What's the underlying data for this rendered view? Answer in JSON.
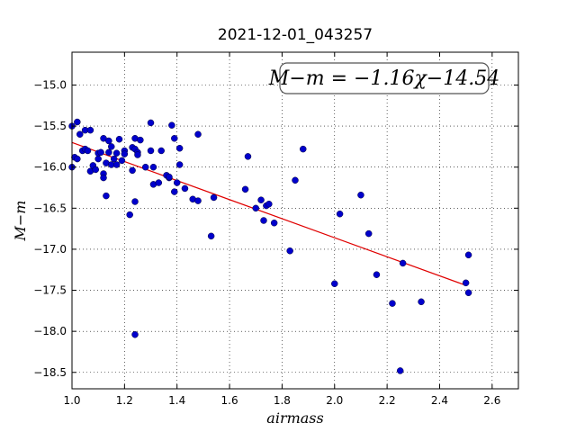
{
  "chart_data": {
    "type": "scatter",
    "title": "2021-12-01_043257",
    "xlabel": "airmass",
    "ylabel": "M−m",
    "xlim": [
      1.0,
      2.7
    ],
    "ylim": [
      -18.7,
      -14.6
    ],
    "y_inverted": true,
    "grid": true,
    "x_ticks": [
      1.0,
      1.2,
      1.4,
      1.6,
      1.8,
      2.0,
      2.2,
      2.4,
      2.6
    ],
    "x_tick_labels": [
      "1.0",
      "1.2",
      "1.4",
      "1.6",
      "1.8",
      "2.0",
      "2.2",
      "2.4",
      "2.6"
    ],
    "y_ticks": [
      -15.0,
      -15.5,
      -16.0,
      -16.5,
      -17.0,
      -17.5,
      -18.0,
      -18.5
    ],
    "y_tick_labels": [
      "−15.0",
      "−15.5",
      "−16.0",
      "−16.5",
      "−17.0",
      "−17.5",
      "−18.0",
      "−18.5"
    ],
    "annotation": "M−m = −1.16χ−14.54",
    "fit": {
      "slope": -1.16,
      "intercept": -14.54,
      "x_range": [
        1.0,
        2.5
      ],
      "color": "#e00000"
    },
    "points_color": "#0000cc",
    "points": [
      {
        "x": 1.0,
        "y": -15.5
      },
      {
        "x": 1.0,
        "y": -16.0
      },
      {
        "x": 1.01,
        "y": -15.88
      },
      {
        "x": 1.02,
        "y": -15.45
      },
      {
        "x": 1.02,
        "y": -15.9
      },
      {
        "x": 1.03,
        "y": -15.6
      },
      {
        "x": 1.04,
        "y": -15.8
      },
      {
        "x": 1.05,
        "y": -15.55
      },
      {
        "x": 1.05,
        "y": -15.78
      },
      {
        "x": 1.06,
        "y": -15.8
      },
      {
        "x": 1.07,
        "y": -15.55
      },
      {
        "x": 1.07,
        "y": -16.05
      },
      {
        "x": 1.08,
        "y": -15.98
      },
      {
        "x": 1.09,
        "y": -16.03
      },
      {
        "x": 1.1,
        "y": -15.83
      },
      {
        "x": 1.1,
        "y": -15.9
      },
      {
        "x": 1.11,
        "y": -15.82
      },
      {
        "x": 1.12,
        "y": -15.65
      },
      {
        "x": 1.12,
        "y": -16.08
      },
      {
        "x": 1.12,
        "y": -16.13
      },
      {
        "x": 1.13,
        "y": -15.95
      },
      {
        "x": 1.13,
        "y": -16.35
      },
      {
        "x": 1.14,
        "y": -15.82
      },
      {
        "x": 1.14,
        "y": -15.68
      },
      {
        "x": 1.15,
        "y": -15.75
      },
      {
        "x": 1.15,
        "y": -15.97
      },
      {
        "x": 1.16,
        "y": -15.9
      },
      {
        "x": 1.17,
        "y": -15.83
      },
      {
        "x": 1.17,
        "y": -15.97
      },
      {
        "x": 1.18,
        "y": -15.66
      },
      {
        "x": 1.19,
        "y": -15.92
      },
      {
        "x": 1.2,
        "y": -15.8
      },
      {
        "x": 1.2,
        "y": -15.84
      },
      {
        "x": 1.22,
        "y": -16.58
      },
      {
        "x": 1.23,
        "y": -15.76
      },
      {
        "x": 1.23,
        "y": -16.04
      },
      {
        "x": 1.24,
        "y": -16.42
      },
      {
        "x": 1.24,
        "y": -15.78
      },
      {
        "x": 1.24,
        "y": -15.65
      },
      {
        "x": 1.25,
        "y": -15.82
      },
      {
        "x": 1.25,
        "y": -15.85
      },
      {
        "x": 1.24,
        "y": -18.04
      },
      {
        "x": 1.26,
        "y": -15.67
      },
      {
        "x": 1.28,
        "y": -16.0
      },
      {
        "x": 1.3,
        "y": -15.46
      },
      {
        "x": 1.3,
        "y": -15.8
      },
      {
        "x": 1.31,
        "y": -16.0
      },
      {
        "x": 1.31,
        "y": -16.21
      },
      {
        "x": 1.33,
        "y": -16.19
      },
      {
        "x": 1.34,
        "y": -15.8
      },
      {
        "x": 1.36,
        "y": -16.1
      },
      {
        "x": 1.37,
        "y": -16.13
      },
      {
        "x": 1.37,
        "y": -16.12
      },
      {
        "x": 1.38,
        "y": -15.49
      },
      {
        "x": 1.39,
        "y": -15.65
      },
      {
        "x": 1.39,
        "y": -16.3
      },
      {
        "x": 1.4,
        "y": -16.19
      },
      {
        "x": 1.41,
        "y": -15.77
      },
      {
        "x": 1.41,
        "y": -15.97
      },
      {
        "x": 1.43,
        "y": -16.26
      },
      {
        "x": 1.46,
        "y": -16.39
      },
      {
        "x": 1.48,
        "y": -15.6
      },
      {
        "x": 1.48,
        "y": -16.41
      },
      {
        "x": 1.53,
        "y": -16.84
      },
      {
        "x": 1.54,
        "y": -16.37
      },
      {
        "x": 1.66,
        "y": -16.27
      },
      {
        "x": 1.67,
        "y": -15.87
      },
      {
        "x": 1.7,
        "y": -16.5
      },
      {
        "x": 1.72,
        "y": -16.4
      },
      {
        "x": 1.73,
        "y": -16.65
      },
      {
        "x": 1.74,
        "y": -16.47
      },
      {
        "x": 1.75,
        "y": -16.45
      },
      {
        "x": 1.77,
        "y": -16.68
      },
      {
        "x": 1.83,
        "y": -17.02
      },
      {
        "x": 1.85,
        "y": -16.16
      },
      {
        "x": 1.88,
        "y": -15.78
      },
      {
        "x": 2.0,
        "y": -17.42
      },
      {
        "x": 2.02,
        "y": -16.57
      },
      {
        "x": 2.1,
        "y": -16.34
      },
      {
        "x": 2.13,
        "y": -16.81
      },
      {
        "x": 2.16,
        "y": -17.31
      },
      {
        "x": 2.22,
        "y": -17.66
      },
      {
        "x": 2.25,
        "y": -18.48
      },
      {
        "x": 2.26,
        "y": -17.17
      },
      {
        "x": 2.33,
        "y": -17.64
      },
      {
        "x": 2.5,
        "y": -17.41
      },
      {
        "x": 2.51,
        "y": -17.07
      },
      {
        "x": 2.51,
        "y": -17.53
      }
    ]
  }
}
